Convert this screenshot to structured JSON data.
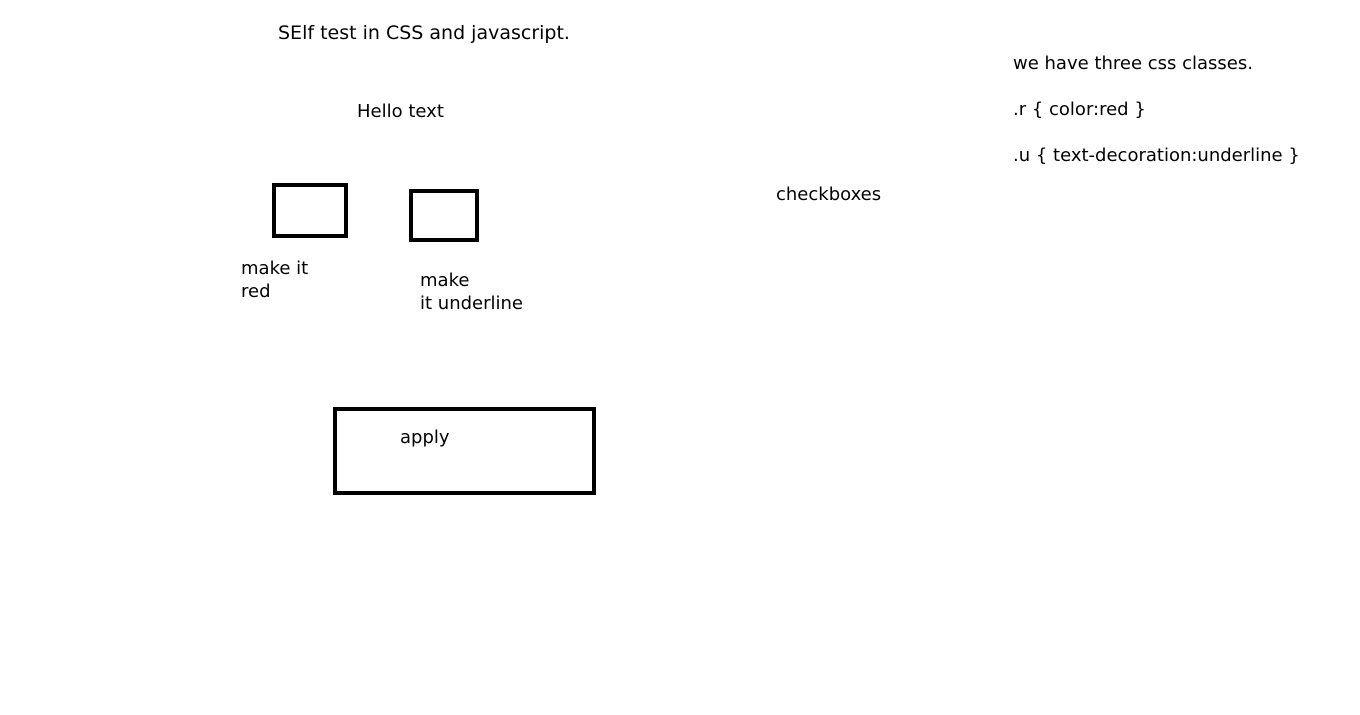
{
  "page": {
    "title": "SElf test in CSS and javascript.",
    "hello_text": "Hello text"
  },
  "options": {
    "red_label_line1": "make it",
    "red_label_line2": "red",
    "underline_label_line1": "make",
    "underline_label_line2": "it underline"
  },
  "apply_button": {
    "label": "apply"
  },
  "annotations": {
    "checkboxes": "checkboxes",
    "heading": "we have three css classes.",
    "rule_r": ".r  { color:red  }",
    "rule_u": ".u  { text-decoration:underline }"
  }
}
